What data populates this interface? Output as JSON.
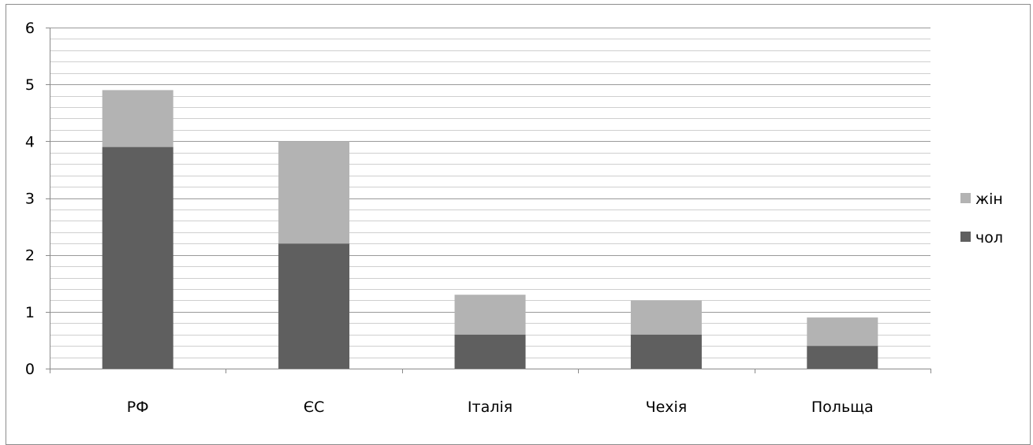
{
  "chart_data": {
    "type": "bar",
    "stacked": true,
    "categories": [
      "РФ",
      "ЄС",
      "Італія",
      "Чехія",
      "Польща"
    ],
    "series": [
      {
        "name": "чол",
        "values": [
          3.9,
          2.2,
          0.6,
          0.6,
          0.4
        ],
        "color": "#5f5f5f"
      },
      {
        "name": "жін",
        "values": [
          1.0,
          1.8,
          0.7,
          0.6,
          0.5
        ],
        "color": "#b3b3b3"
      }
    ],
    "ylim": [
      0,
      6
    ],
    "y_ticks": [
      "0",
      "1",
      "2",
      "3",
      "4",
      "5",
      "6"
    ],
    "minor_grid_step": 0.2,
    "grid": true,
    "legend": {
      "position": "right",
      "order": [
        "жін",
        "чол"
      ]
    },
    "title": "",
    "xlabel": "",
    "ylabel": ""
  }
}
